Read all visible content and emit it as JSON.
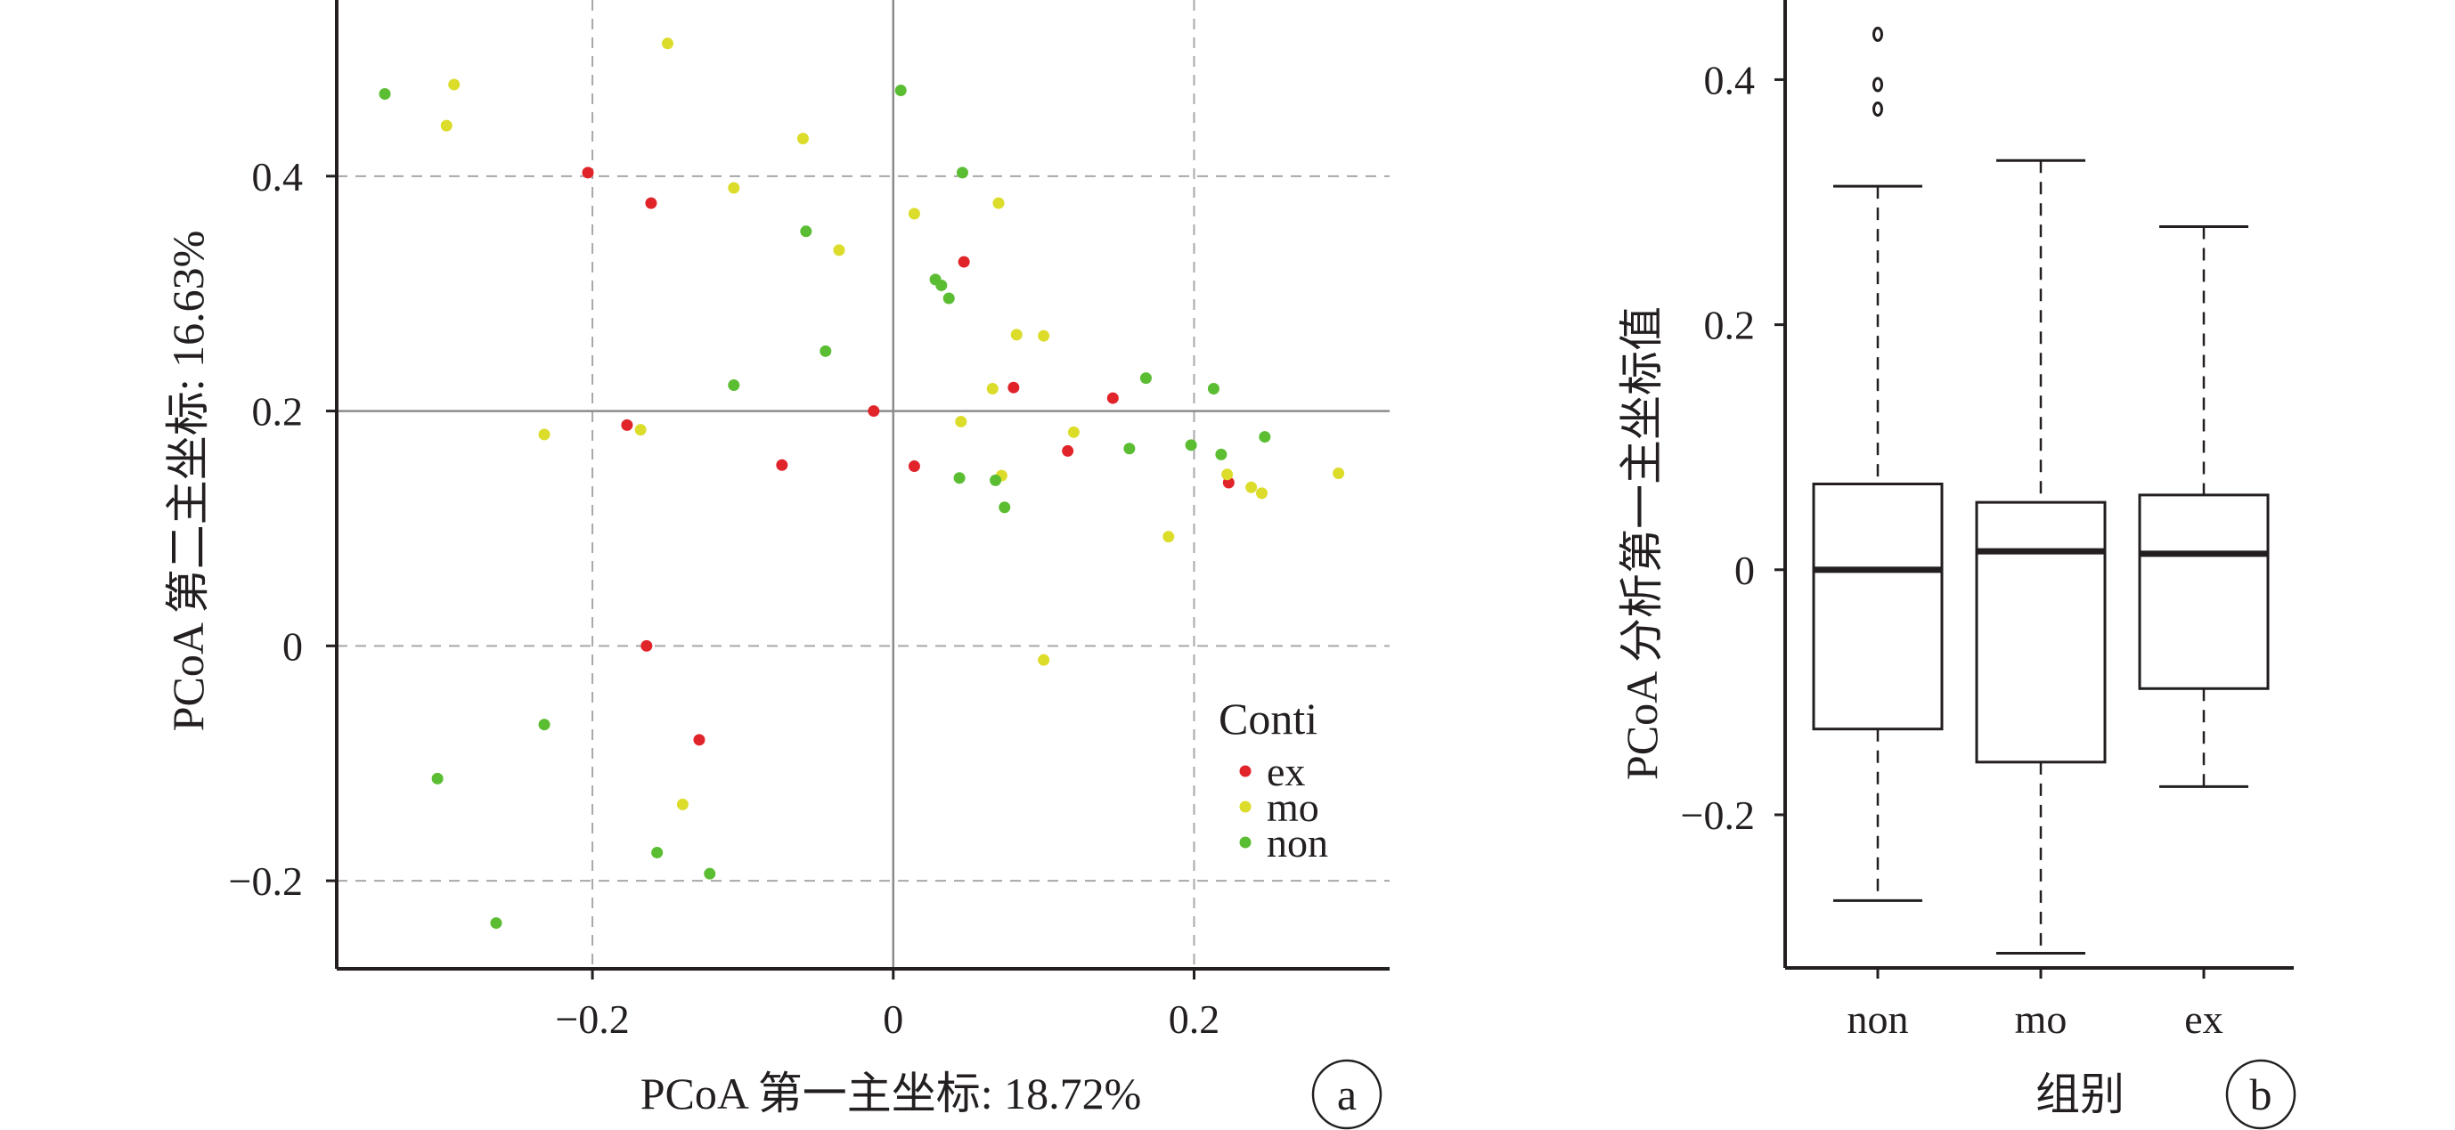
{
  "colors": {
    "ex": "#e0242a",
    "mo": "#dcdc2a",
    "non": "#5bbd32",
    "axis": "#231f20",
    "grid": "#a8a8a8",
    "ref": "#8c8c8c"
  },
  "chart_data": [
    {
      "type": "scatter",
      "panel_label": "a",
      "xlabel": "PCoA 第一主坐标: 18.72%",
      "ylabel": "PCoA 第二主坐标: 16.63%",
      "xlim": [
        -0.37,
        0.33
      ],
      "ylim": [
        -0.275,
        0.55
      ],
      "xticks": [
        -0.2,
        0,
        0.2
      ],
      "xtick_labels": [
        "−0.2",
        "0",
        "0.2"
      ],
      "yticks": [
        -0.2,
        0,
        0.2,
        0.4
      ],
      "ytick_labels": [
        "−0.2",
        "0",
        "0.2",
        "0.4"
      ],
      "grid": "dashed at ticks",
      "reference_lines": {
        "x": 0,
        "y": 0.2
      },
      "legend": {
        "title": "Conti",
        "position": "bottom-right"
      },
      "series": [
        {
          "name": "ex",
          "color": "#e0242a",
          "points": [
            [
              -0.203,
              0.403
            ],
            [
              -0.161,
              0.377
            ],
            [
              0.047,
              0.327
            ],
            [
              0.08,
              0.22
            ],
            [
              0.146,
              0.211
            ],
            [
              -0.013,
              0.2
            ],
            [
              -0.177,
              0.188
            ],
            [
              -0.074,
              0.154
            ],
            [
              0.014,
              0.153
            ],
            [
              0.116,
              0.166
            ],
            [
              0.223,
              0.139
            ],
            [
              -0.164,
              0.0
            ],
            [
              -0.129,
              -0.08
            ]
          ]
        },
        {
          "name": "mo",
          "color": "#dcdc2a",
          "points": [
            [
              -0.15,
              0.513
            ],
            [
              -0.292,
              0.478
            ],
            [
              -0.297,
              0.443
            ],
            [
              -0.06,
              0.432
            ],
            [
              -0.106,
              0.39
            ],
            [
              0.07,
              0.377
            ],
            [
              0.014,
              0.368
            ],
            [
              -0.036,
              0.337
            ],
            [
              0.082,
              0.265
            ],
            [
              0.1,
              0.264
            ],
            [
              0.066,
              0.219
            ],
            [
              0.045,
              0.191
            ],
            [
              -0.232,
              0.18
            ],
            [
              -0.168,
              0.184
            ],
            [
              0.12,
              0.182
            ],
            [
              0.072,
              0.145
            ],
            [
              0.222,
              0.146
            ],
            [
              0.238,
              0.135
            ],
            [
              0.245,
              0.13
            ],
            [
              0.296,
              0.147
            ],
            [
              0.183,
              0.093
            ],
            [
              0.1,
              -0.012
            ],
            [
              -0.14,
              -0.135
            ]
          ]
        },
        {
          "name": "non",
          "color": "#5bbd32",
          "points": [
            [
              -0.338,
              0.47
            ],
            [
              0.005,
              0.473
            ],
            [
              0.046,
              0.403
            ],
            [
              -0.058,
              0.353
            ],
            [
              0.028,
              0.312
            ],
            [
              0.032,
              0.307
            ],
            [
              0.037,
              0.296
            ],
            [
              -0.045,
              0.251
            ],
            [
              -0.106,
              0.222
            ],
            [
              0.168,
              0.228
            ],
            [
              0.213,
              0.219
            ],
            [
              0.198,
              0.171
            ],
            [
              0.218,
              0.163
            ],
            [
              0.247,
              0.178
            ],
            [
              0.157,
              0.168
            ],
            [
              0.044,
              0.143
            ],
            [
              0.068,
              0.141
            ],
            [
              0.074,
              0.118
            ],
            [
              -0.232,
              -0.067
            ],
            [
              -0.303,
              -0.113
            ],
            [
              -0.157,
              -0.176
            ],
            [
              -0.122,
              -0.194
            ],
            [
              -0.264,
              -0.236
            ]
          ]
        }
      ]
    },
    {
      "type": "box",
      "panel_label": "b",
      "xlabel": "组别",
      "ylabel": "PCoA 分析第一主坐标值",
      "ylim": [
        -0.325,
        0.465
      ],
      "yticks": [
        -0.2,
        0,
        0.2,
        0.4
      ],
      "ytick_labels": [
        "−0.2",
        "0",
        "0.2",
        "0.4"
      ],
      "categories": [
        "non",
        "mo",
        "ex"
      ],
      "boxes": [
        {
          "name": "non",
          "whisker_low": -0.27,
          "q1": -0.13,
          "median": 0.0,
          "q3": 0.07,
          "whisker_high": 0.313,
          "outliers": [
            0.437,
            0.396,
            0.376
          ]
        },
        {
          "name": "mo",
          "whisker_low": -0.313,
          "q1": -0.157,
          "median": 0.015,
          "q3": 0.055,
          "whisker_high": 0.334,
          "outliers": []
        },
        {
          "name": "ex",
          "whisker_low": -0.177,
          "q1": -0.097,
          "median": 0.013,
          "q3": 0.061,
          "whisker_high": 0.28,
          "outliers": []
        }
      ]
    }
  ]
}
